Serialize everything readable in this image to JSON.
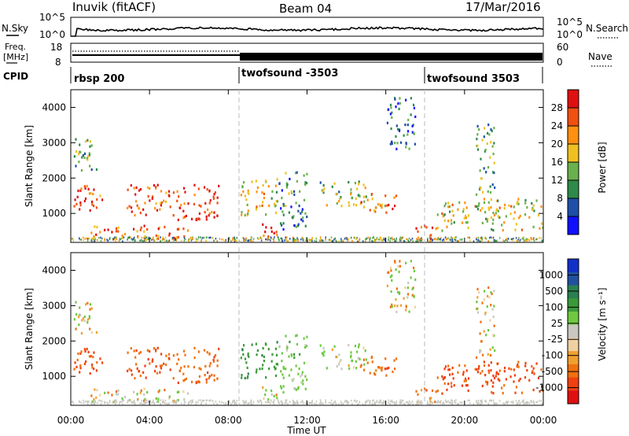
{
  "header": {
    "station": "Inuvik (fitACF)",
    "beam": "Beam 04",
    "date": "17/Mar/2016"
  },
  "noise_panel": {
    "left_label": "N.Sky",
    "right_label": "N.Search",
    "left_ticks": [
      "10^5",
      "10^0"
    ],
    "right_ticks": [
      "10^5",
      "10^0"
    ]
  },
  "freq_panel": {
    "left_label_1": "Freq.",
    "left_label_2": "[MHz]",
    "right_label": "Nave",
    "left_ticks": [
      "18",
      "8"
    ],
    "right_ticks": [
      "60",
      "0"
    ]
  },
  "cpid_panel": {
    "label": "CPID",
    "segments": [
      {
        "label": "rbsp 200",
        "start_hour": 0
      },
      {
        "label": "twofsound -3503",
        "start_hour": 8.5
      },
      {
        "label": "twofsound 3503",
        "start_hour": 18
      }
    ]
  },
  "colors": {
    "power_scale": [
      "#1010ff",
      "#1f4fa8",
      "#2e8a4a",
      "#6ab04c",
      "#f0c020",
      "#ff9010",
      "#f05010",
      "#e01010"
    ],
    "velocity_scale": [
      "#e01010",
      "#f04010",
      "#f07010",
      "#f0a030",
      "#f0d0a0",
      "#c8c8c0",
      "#6ec840",
      "#3a9a3a",
      "#2a8050",
      "#2050a0",
      "#1030c8"
    ]
  },
  "chart_data": {
    "type": "heatmap",
    "x_axis": {
      "label": "Time UT",
      "range_hours": [
        0,
        24
      ],
      "tick_labels": [
        "00:00",
        "04:00",
        "08:00",
        "12:00",
        "16:00",
        "20:00",
        "00:00"
      ]
    },
    "panels": [
      {
        "name": "power",
        "ylabel": "Slant Range [km]",
        "ylim": [
          180,
          4500
        ],
        "y_tick_labels": [
          "1000",
          "2000",
          "3000",
          "4000"
        ],
        "colorbar_label": "Power [dB]",
        "colorbar_ticks": [
          "4",
          "8",
          "12",
          "16",
          "20",
          "24",
          "28"
        ],
        "colorbar_range": [
          0,
          32
        ]
      },
      {
        "name": "velocity",
        "ylabel": "Slant Range [km]",
        "ylim": [
          180,
          4500
        ],
        "y_tick_labels": [
          "1000",
          "2000",
          "3000",
          "4000"
        ],
        "colorbar_label": "Velocity [m s⁻¹]",
        "colorbar_ticks": [
          "1000",
          "500",
          "100",
          "25",
          "-25",
          "-100",
          "-500",
          "-1000"
        ]
      }
    ],
    "echo_regions": [
      {
        "t": [
          0.0,
          1.6
        ],
        "r": [
          1000,
          1800
        ],
        "power": 26,
        "vel": -600
      },
      {
        "t": [
          0.1,
          1.3
        ],
        "r": [
          2200,
          3200
        ],
        "power": 12,
        "vel": 20
      },
      {
        "t": [
          2.8,
          5.0
        ],
        "r": [
          900,
          1800
        ],
        "power": 26,
        "vel": -500
      },
      {
        "t": [
          5.0,
          7.5
        ],
        "r": [
          800,
          1800
        ],
        "power": 28,
        "vel": -400
      },
      {
        "t": [
          1.0,
          6.0
        ],
        "r": [
          250,
          650
        ],
        "power": 24,
        "vel": 80
      },
      {
        "t": [
          8.6,
          10.5
        ],
        "r": [
          900,
          2000
        ],
        "power": 18,
        "vel": 800
      },
      {
        "t": [
          9.5,
          10.5
        ],
        "r": [
          220,
          700
        ],
        "power": 28,
        "vel": 90
      },
      {
        "t": [
          10.5,
          12.0
        ],
        "r": [
          500,
          2200
        ],
        "power": 10,
        "vel": 300
      },
      {
        "t": [
          12.5,
          15.0
        ],
        "r": [
          1200,
          1900
        ],
        "power": 14,
        "vel": 200
      },
      {
        "t": [
          14.5,
          16.5
        ],
        "r": [
          1000,
          1600
        ],
        "power": 22,
        "vel": -300
      },
      {
        "t": [
          16.0,
          17.5
        ],
        "r": [
          2800,
          4300
        ],
        "power": 8,
        "vel": 20
      },
      {
        "t": [
          18.5,
          24.0
        ],
        "r": [
          500,
          1400
        ],
        "power": 18,
        "vel": -600
      },
      {
        "t": [
          20.5,
          21.5
        ],
        "r": [
          1500,
          3500
        ],
        "power": 12,
        "vel": 10
      },
      {
        "t": [
          17.5,
          18.5
        ],
        "r": [
          200,
          700
        ],
        "power": 26,
        "vel": -300
      }
    ]
  }
}
